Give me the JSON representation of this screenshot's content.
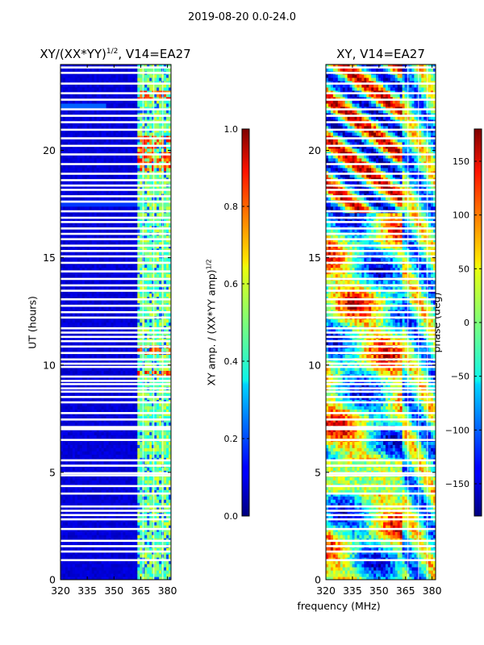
{
  "suptitle": "2019-08-20 0.0-24.0",
  "chart_data": [
    {
      "type": "heatmap",
      "title_main": "XY/(XX*YY)",
      "title_sup": "1/2",
      "title_rest": ", V14=EA27",
      "xlabel": "",
      "ylabel": "UT (hours)",
      "xlim": [
        320,
        382
      ],
      "ylim": [
        0,
        24
      ],
      "xticks": [
        "320",
        "335",
        "350",
        "365",
        "380"
      ],
      "xtick_values": [
        320,
        335,
        350,
        365,
        380
      ],
      "yticks": [
        "0",
        "5",
        "10",
        "15",
        "20"
      ],
      "ytick_values": [
        0,
        5,
        10,
        15,
        20
      ],
      "colorbar": {
        "label_main": "XY amp. / (XX*YY amp)",
        "label_sup": "1/2",
        "range": [
          0.0,
          1.0
        ],
        "ticks": [
          "0.0",
          "0.2",
          "0.4",
          "0.6",
          "0.8",
          "1.0"
        ],
        "tick_values": [
          0.0,
          0.2,
          0.4,
          0.6,
          0.8,
          1.0
        ]
      },
      "colormap": "jet",
      "description": "Mostly low normalized amplitude (~0.05) at 320-362 MHz; elevated amplitude (0.3-0.6) in the 363-381 MHz band, with peaks near 0.8 around UT 9.5, 10.5 and 19-20 h; flagged (white) time rows throughout"
    },
    {
      "type": "heatmap",
      "title": "XY, V14=EA27",
      "xlabel": "frequency (MHz)",
      "ylabel": "",
      "xlim": [
        320,
        382
      ],
      "ylim": [
        0,
        24
      ],
      "xticks": [
        "320",
        "335",
        "350",
        "365",
        "380"
      ],
      "xtick_values": [
        320,
        335,
        350,
        365,
        380
      ],
      "yticks": [
        "0",
        "5",
        "10",
        "15",
        "20"
      ],
      "ytick_values": [
        0,
        5,
        10,
        15,
        20
      ],
      "colorbar": {
        "label": "phase (deg)",
        "range": [
          -180,
          180
        ],
        "ticks": [
          "−150",
          "−100",
          "−50",
          "0",
          "50",
          "100",
          "150"
        ],
        "tick_values": [
          -150,
          -100,
          -50,
          0,
          50,
          100,
          150
        ]
      },
      "colormap": "jet",
      "description": "XY phase in degrees spanning -180 to 180, strongly variable with time and frequency; same flagged rows as the amplitude panel"
    }
  ]
}
